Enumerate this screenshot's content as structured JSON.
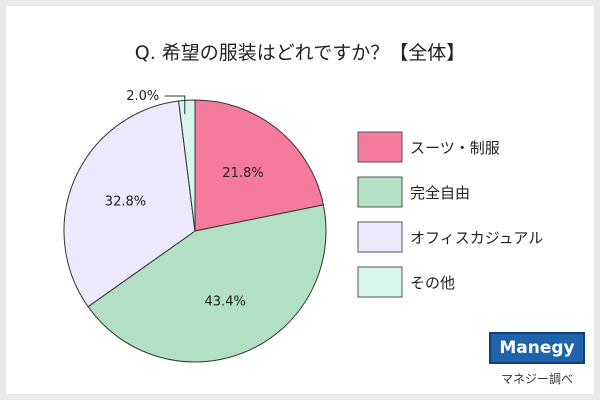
{
  "title": "Q. 希望の服装はどれですか？【全体】",
  "chart_data": {
    "type": "pie",
    "categories": [
      "スーツ・制服",
      "完全自由",
      "オフィスカジュアル",
      "その他"
    ],
    "values": [
      21.8,
      43.4,
      32.8,
      2.0
    ],
    "value_labels": [
      "21.8%",
      "43.4%",
      "32.8%",
      "2.0%"
    ],
    "colors": [
      "#f47a9e",
      "#b2e0c4",
      "#ebe9fb",
      "#d6f6ec"
    ],
    "legend_position": "right"
  },
  "brand": {
    "logo_text": "Manegy",
    "source_text": "マネジー調べ"
  }
}
